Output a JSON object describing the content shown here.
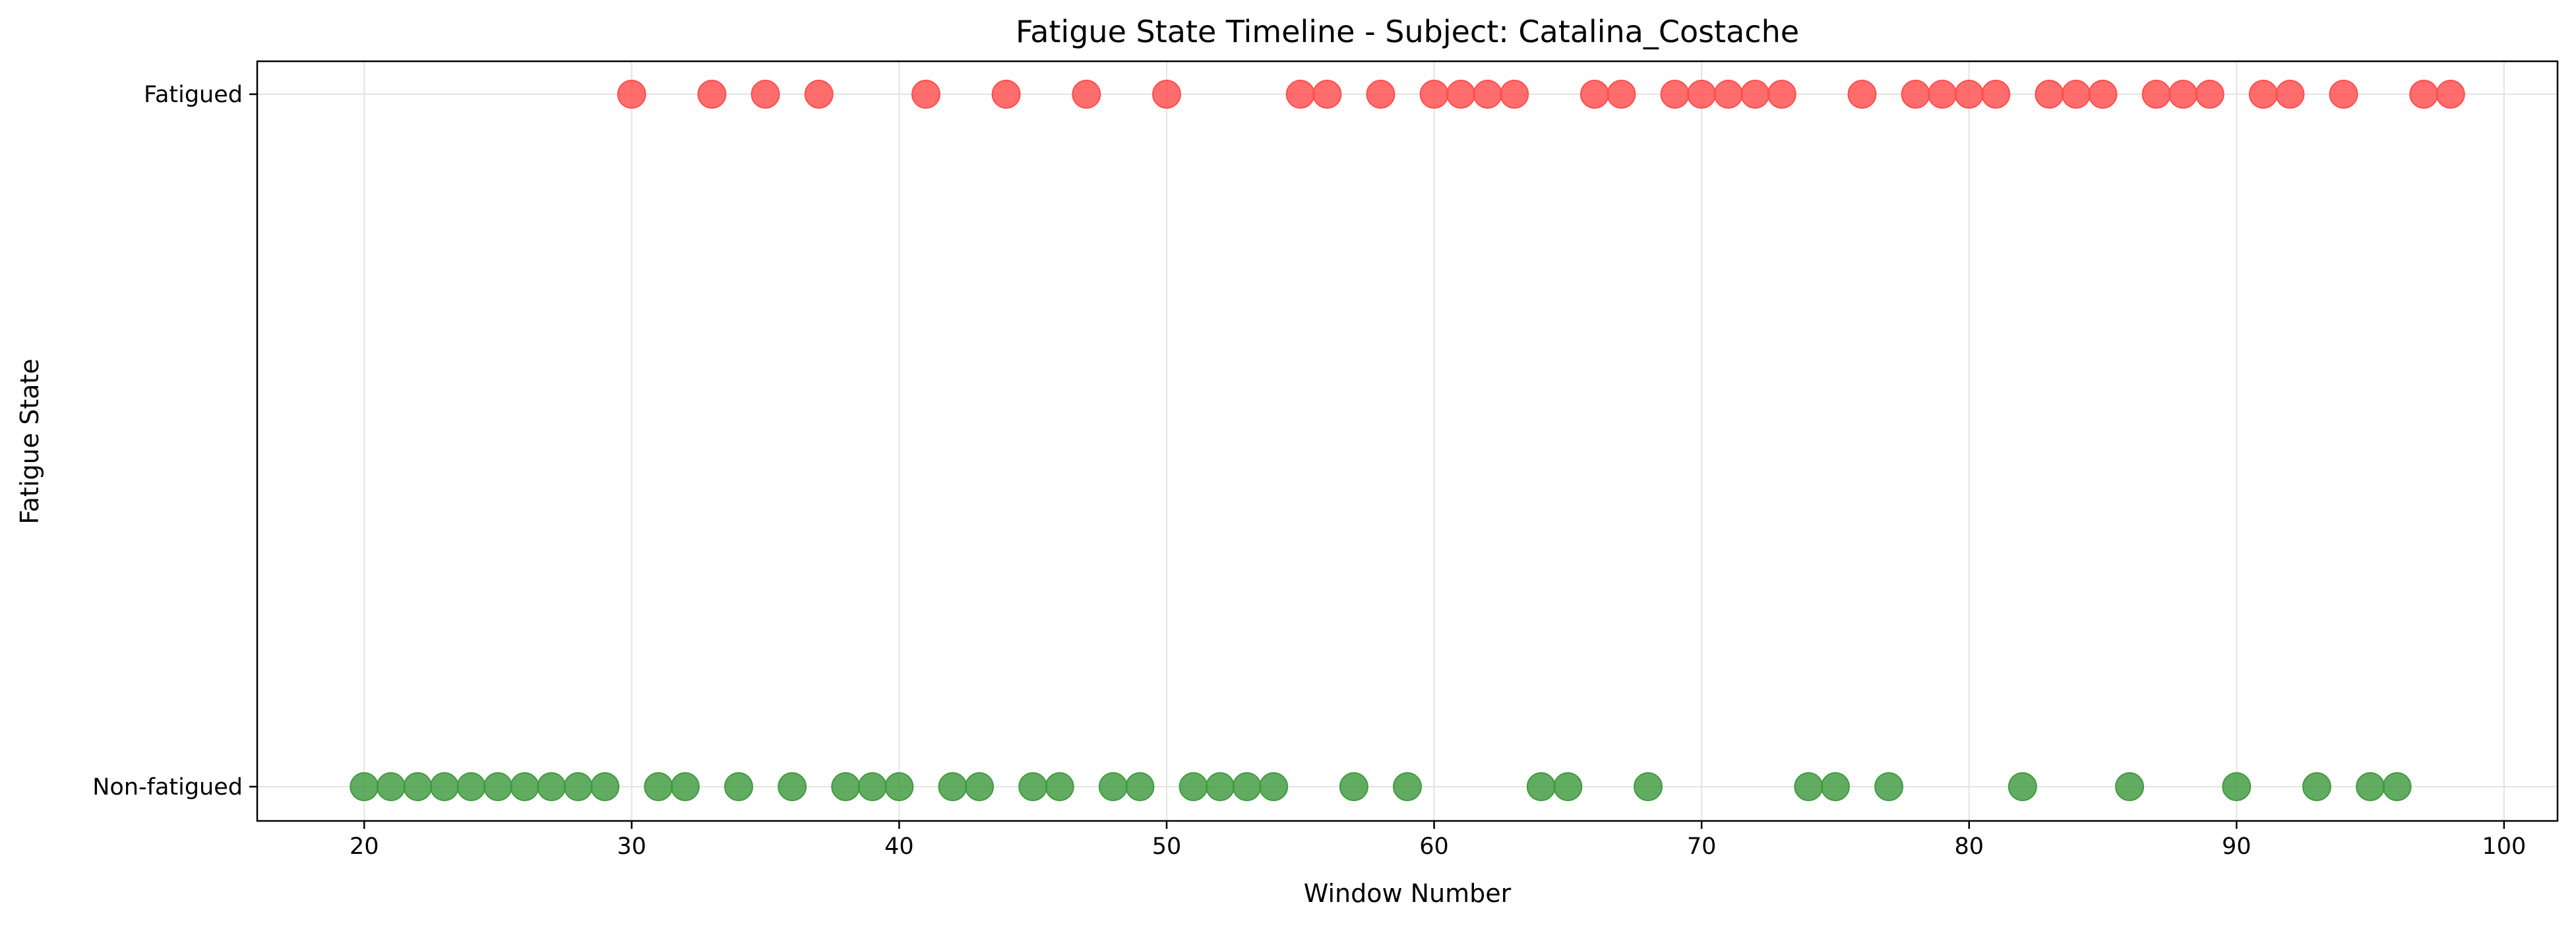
{
  "chart_data": {
    "type": "scatter",
    "title": "Fatigue State Timeline - Subject: Catalina_Costache",
    "xlabel": "Window Number",
    "ylabel": "Fatigue State",
    "xlim": [
      16,
      102
    ],
    "x_ticks": [
      20,
      30,
      40,
      50,
      60,
      70,
      80,
      90,
      100
    ],
    "y_categories": [
      "Non-fatigued",
      "Fatigued"
    ],
    "grid": true,
    "colors": {
      "Fatigued": "#ff4d4d",
      "Non-fatigued": "#3f9a3f"
    },
    "series": [
      {
        "category": "Fatigued",
        "x": [
          30,
          33,
          35,
          37,
          41,
          44,
          47,
          50,
          55,
          56,
          58,
          60,
          61,
          62,
          63,
          66,
          67,
          69,
          70,
          71,
          72,
          73,
          76,
          78,
          79,
          80,
          81,
          83,
          84,
          85,
          87,
          88,
          89,
          91,
          92,
          94,
          97,
          98
        ]
      },
      {
        "category": "Non-fatigued",
        "x": [
          20,
          21,
          22,
          23,
          24,
          25,
          26,
          27,
          28,
          29,
          31,
          32,
          34,
          36,
          38,
          39,
          40,
          42,
          43,
          45,
          46,
          48,
          49,
          51,
          52,
          53,
          54,
          57,
          59,
          64,
          65,
          68,
          74,
          75,
          77,
          82,
          86,
          90,
          93,
          95,
          96
        ]
      }
    ]
  }
}
